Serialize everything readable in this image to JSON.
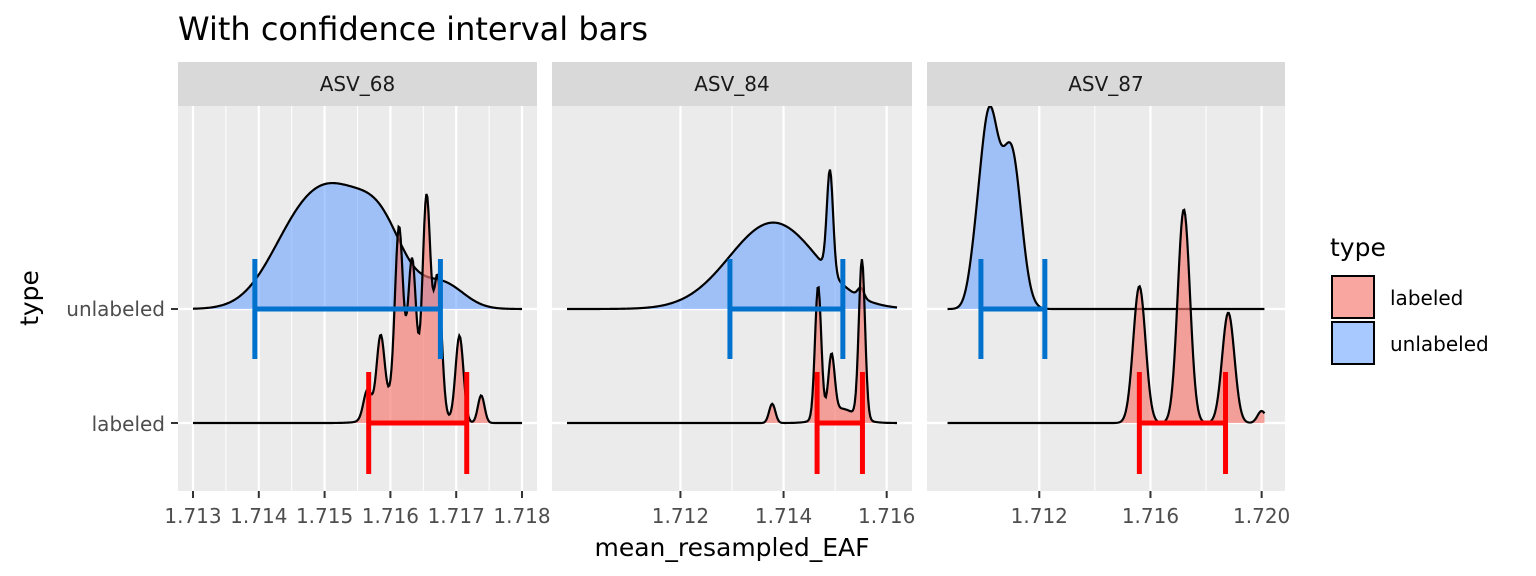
{
  "chart_data": {
    "type": "ridgeline-density",
    "title": "With confidence interval bars",
    "xlabel": "mean_resampled_EAF",
    "ylabel": "type",
    "y_categories": [
      "labeled",
      "unlabeled"
    ],
    "legend": {
      "title": "type",
      "position": "right",
      "entries": [
        {
          "label": "labeled",
          "color": "#F8766D"
        },
        {
          "label": "unlabeled",
          "color": "#619CFF"
        }
      ]
    },
    "ci_colors": {
      "labeled": "#FF0000",
      "unlabeled": "#0072CE"
    },
    "panels": [
      {
        "strip": "ASV_68",
        "xlim": [
          1.713,
          1.718
        ],
        "xticks": [
          1.713,
          1.714,
          1.715,
          1.716,
          1.717,
          1.718
        ],
        "xtick_labels": [
          "1.713",
          "1.714",
          "1.715",
          "1.716",
          "1.717",
          "1.718"
        ],
        "series": [
          {
            "name": "unlabeled",
            "x_range": [
              1.713,
              1.718
            ],
            "peaks": [
              [
                1.7145,
                0.00045,
                0.3
              ],
              [
                1.7152,
                0.0006,
                0.92
              ],
              [
                1.7159,
                0.00033,
                0.35
              ],
              [
                1.7168,
                0.00032,
                0.2
              ]
            ],
            "ci": [
              1.71394,
              1.71676
            ]
          },
          {
            "name": "labeled",
            "x_range": [
              1.713,
              1.718
            ],
            "peaks": [
              [
                1.71565,
                6e-05,
                0.24
              ],
              [
                1.71585,
                6e-05,
                0.62
              ],
              [
                1.71613,
                6e-05,
                1.38
              ],
              [
                1.71633,
                6e-05,
                1.1
              ],
              [
                1.71655,
                6e-05,
                1.72
              ],
              [
                1.71672,
                6e-05,
                1.12
              ],
              [
                1.71705,
                6e-05,
                0.72
              ],
              [
                1.71738,
                5e-05,
                0.23
              ],
              [
                1.71625,
                0.0003,
                0.28
              ]
            ],
            "ci": [
              1.71567,
              1.71716
            ]
          }
        ]
      },
      {
        "strip": "ASV_84",
        "xlim": [
          1.7098,
          1.7162
        ],
        "xticks": [
          1.712,
          1.714,
          1.716
        ],
        "xtick_labels": [
          "1.712",
          "1.714",
          "1.716"
        ],
        "series": [
          {
            "name": "unlabeled",
            "x_range": [
              1.7098,
              1.7162
            ],
            "peaks": [
              [
                1.7138,
                0.00085,
                0.72
              ],
              [
                1.7149,
                6e-05,
                0.85
              ],
              [
                1.7155,
                6e-05,
                0.08
              ]
            ],
            "ci": [
              1.71296,
              1.71515
            ]
          },
          {
            "name": "labeled",
            "x_range": [
              1.7098,
              1.7162
            ],
            "peaks": [
              [
                1.71378,
                6e-05,
                0.16
              ],
              [
                1.71467,
                6e-05,
                1.1
              ],
              [
                1.71493,
                6e-05,
                0.48
              ],
              [
                1.71552,
                6e-05,
                1.32
              ],
              [
                1.7151,
                0.0003,
                0.12
              ]
            ],
            "ci": [
              1.71465,
              1.71553
            ]
          }
        ]
      },
      {
        "strip": "ASV_87",
        "xlim": [
          1.7085,
          1.7203
        ],
        "xticks": [
          1.712,
          1.716,
          1.72
        ],
        "xtick_labels": [
          "1.712",
          "1.716",
          "1.720"
        ],
        "series": [
          {
            "name": "unlabeled",
            "x_range": [
              1.7087,
              1.7201
            ],
            "peaks": [
              [
                1.7102,
                0.00032,
                1.55
              ],
              [
                1.711,
                0.00035,
                1.3
              ],
              [
                1.7097,
                0.00025,
                0.3
              ]
            ],
            "ci": [
              1.7099,
              1.7122
            ]
          },
          {
            "name": "labeled",
            "x_range": [
              1.7087,
              1.7201
            ],
            "peaks": [
              [
                1.7156,
                0.00022,
                1.14
              ],
              [
                1.7172,
                0.00022,
                1.78
              ],
              [
                1.7188,
                0.00022,
                0.92
              ],
              [
                1.72,
                0.00015,
                0.1
              ]
            ],
            "ci": [
              1.7156,
              1.7187
            ]
          }
        ]
      }
    ]
  }
}
